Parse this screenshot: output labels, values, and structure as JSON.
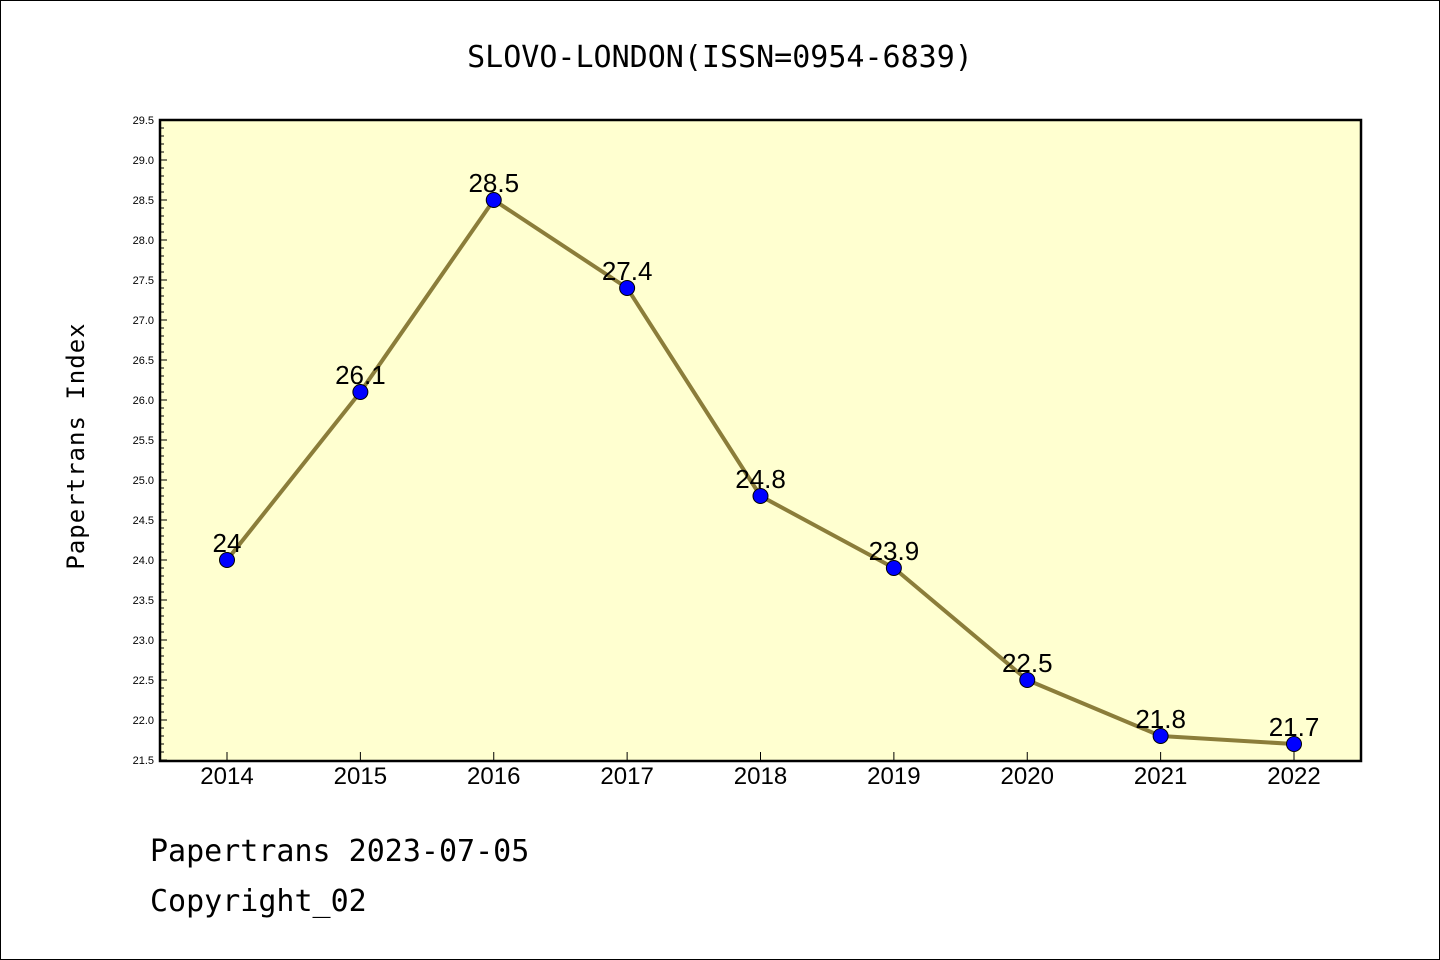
{
  "footer": {
    "line1": "Papertrans 2023-07-05",
    "line2": "Copyright_02"
  },
  "colors": {
    "plot_background": "#ffffd0",
    "line": "#8b7d3a",
    "marker": "#0000ff"
  },
  "chart_data": {
    "type": "line",
    "title": "SLOVO-LONDON(ISSN=0954-6839)",
    "xlabel": "",
    "ylabel": "Papertrans Index",
    "categories": [
      "2014",
      "2015",
      "2016",
      "2017",
      "2018",
      "2019",
      "2020",
      "2021",
      "2022"
    ],
    "values": [
      24,
      26.1,
      28.5,
      27.4,
      24.8,
      23.9,
      22.5,
      21.8,
      21.7
    ],
    "data_labels": [
      "24",
      "26.1",
      "28.5",
      "27.4",
      "24.8",
      "23.9",
      "22.5",
      "21.8",
      "21.7"
    ],
    "ylim": [
      21.5,
      29.5
    ],
    "yticks": [
      "21.5",
      "22.0",
      "22.5",
      "23.0",
      "23.5",
      "24.0",
      "24.5",
      "25.0",
      "25.5",
      "26.0",
      "26.5",
      "27.0",
      "27.5",
      "28.0",
      "28.5",
      "29.0",
      "29.5"
    ],
    "grid": false,
    "legend": "none"
  }
}
